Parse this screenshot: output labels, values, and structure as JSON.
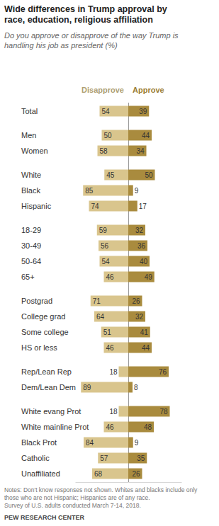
{
  "chart_data": {
    "type": "bar",
    "orientation": "horizontal",
    "title": "Wide differences in Trump approval by race, education, religious affiliation",
    "subtitle": "Do you approve or disapprove of the way Trump is handling his job as president (%)",
    "categories": [
      "Total",
      "Men",
      "Women",
      "White",
      "Black",
      "Hispanic",
      "18-29",
      "30-49",
      "50-64",
      "65+",
      "Postgrad",
      "College grad",
      "Some college",
      "HS or less",
      "Rep/Lean Rep",
      "Dem/Lean Dem",
      "White evang Prot",
      "White mainline Prot",
      "Black Prot",
      "Catholic",
      "Unaffiliated"
    ],
    "series": [
      {
        "name": "Disapprove",
        "color": "#d9c58d",
        "values": [
          54,
          50,
          58,
          45,
          85,
          74,
          59,
          56,
          54,
          46,
          71,
          64,
          51,
          46,
          18,
          89,
          18,
          46,
          84,
          57,
          68
        ]
      },
      {
        "name": "Approve",
        "color": "#a98b3e",
        "values": [
          39,
          44,
          34,
          50,
          9,
          17,
          32,
          36,
          40,
          49,
          26,
          32,
          41,
          44,
          76,
          8,
          78,
          48,
          9,
          35,
          26
        ]
      }
    ],
    "xlim": [
      0,
      100
    ],
    "xticks": [
      0
    ],
    "tick_labels": "y",
    "data_labels": true,
    "notes": "Notes: Don't know responses not shown. Whites and blacks include only those who are not Hispanic; Hispanics are of any race.",
    "source": "Survey of U.S. adults conducted March 7-14, 2018.",
    "credit": "PEW RESEARCH CENTER"
  }
}
